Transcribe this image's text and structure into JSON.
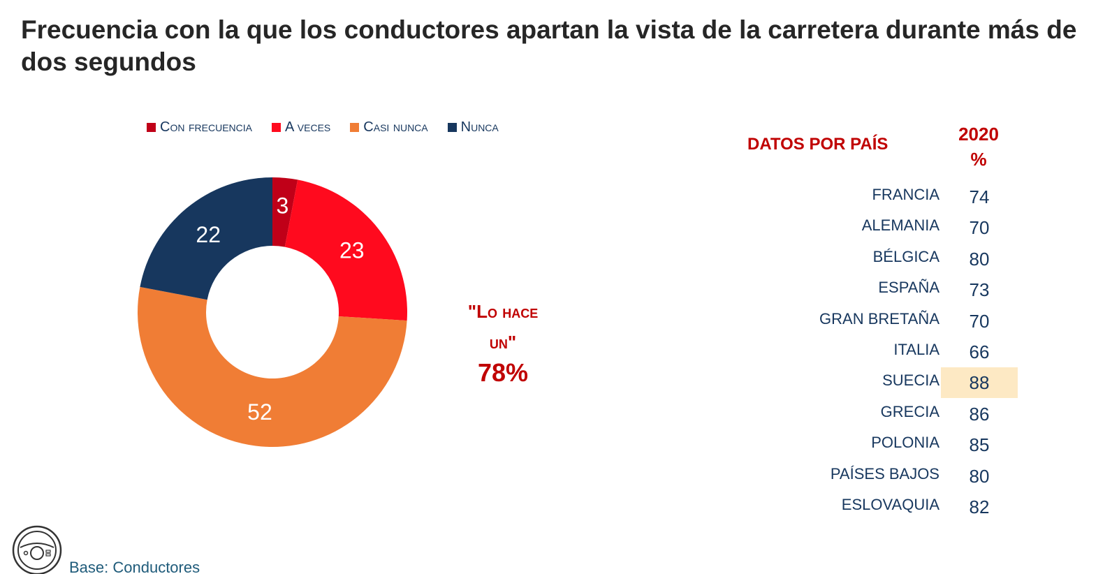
{
  "title": "Frecuencia con la que los conductores apartan la vista de la carretera durante más de dos segundos",
  "chart_data": [
    {
      "type": "pie",
      "variant": "donut",
      "categories": [
        "Con frecuencia",
        "A veces",
        "Casi nunca",
        "Nunca"
      ],
      "values": [
        3,
        23,
        52,
        22
      ],
      "colors": [
        "#c00018",
        "#ff0a1e",
        "#f07d35",
        "#17375e"
      ],
      "legend_position": "top"
    },
    {
      "type": "table",
      "title": "DATOS POR PAÍS",
      "column_header": [
        "2020",
        "%"
      ],
      "rows": [
        {
          "country": "FRANCIA",
          "value": "74"
        },
        {
          "country": "ALEMANIA",
          "value": "70"
        },
        {
          "country": "BÉLGICA",
          "value": "80"
        },
        {
          "country": "ESPAÑA",
          "value": "73"
        },
        {
          "country": "GRAN BRETAÑA",
          "value": "70"
        },
        {
          "country": "ITALIA",
          "value": "66"
        },
        {
          "country": "SUECIA",
          "value": "88",
          "highlight": true
        },
        {
          "country": "GRECIA",
          "value": "86"
        },
        {
          "country": "POLONIA",
          "value": "85"
        },
        {
          "country": "PAÍSES BAJOS",
          "value": "80"
        },
        {
          "country": "ESLOVAQUIA",
          "value": "82"
        }
      ],
      "highlight_color": "#fde9c4"
    }
  ],
  "callout": {
    "line1": "\"Lo hace",
    "line2": "un\"",
    "pct": "78%"
  },
  "footer": {
    "icon": "steering-wheel-icon",
    "text": "Base: Conductores"
  }
}
